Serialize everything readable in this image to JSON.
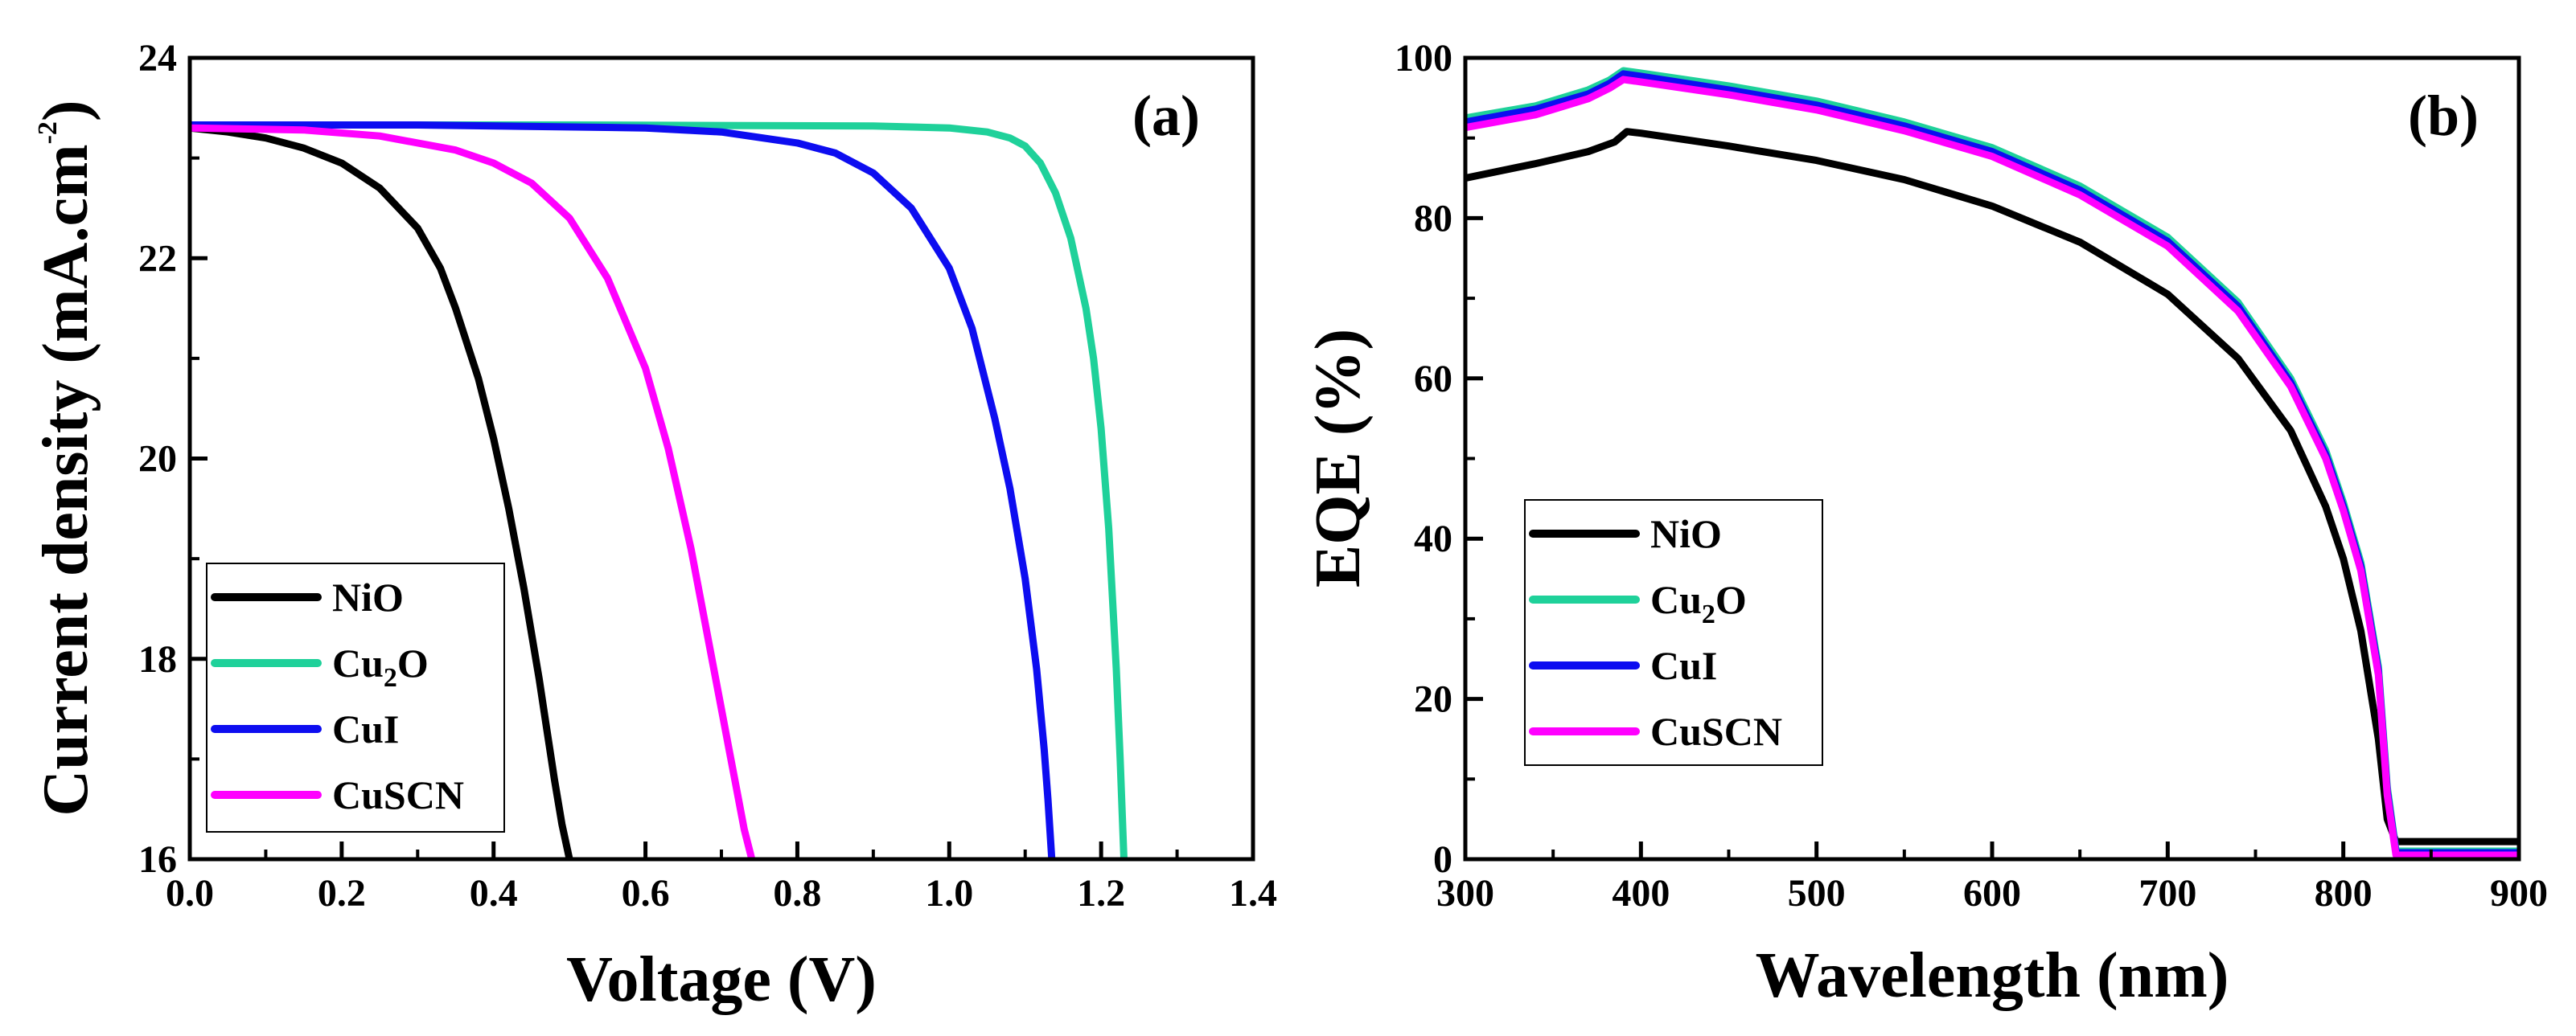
{
  "chart_data": [
    {
      "type": "line",
      "panel_label": "(a)",
      "xlabel": "Voltage (V)",
      "ylabel": "Current density (mA.cm-2)",
      "ylabel_parts": {
        "main": "Current density (mA.cm",
        "sup": "-2",
        "close": ")"
      },
      "xlim": [
        0.0,
        1.4
      ],
      "ylim": [
        16,
        24
      ],
      "xticks": [
        0.0,
        0.2,
        0.4,
        0.6,
        0.8,
        1.0,
        1.2,
        1.4
      ],
      "xtick_labels": [
        "0.0",
        "0.2",
        "0.4",
        "0.6",
        "0.8",
        "1.0",
        "1.2",
        "1.4"
      ],
      "yticks": [
        16,
        18,
        20,
        22,
        24
      ],
      "ytick_labels": [
        "16",
        "18",
        "20",
        "22",
        "24"
      ],
      "legend_position": "bottom-left",
      "series": [
        {
          "name": "NiO",
          "color": "#000000",
          "x": [
            0.0,
            0.05,
            0.1,
            0.15,
            0.2,
            0.25,
            0.3,
            0.33,
            0.35,
            0.38,
            0.4,
            0.42,
            0.44,
            0.46,
            0.47,
            0.48,
            0.49,
            0.5
          ],
          "y": [
            23.3,
            23.26,
            23.2,
            23.1,
            22.95,
            22.7,
            22.3,
            21.9,
            21.5,
            20.8,
            20.2,
            19.5,
            18.7,
            17.8,
            17.3,
            16.8,
            16.35,
            16.0
          ]
        },
        {
          "name": "Cu2O",
          "label_main": "Cu",
          "label_sub": "2",
          "label_end": "O",
          "color": "#1fd19a",
          "x": [
            0.0,
            0.5,
            0.9,
            1.0,
            1.05,
            1.08,
            1.1,
            1.12,
            1.14,
            1.16,
            1.18,
            1.19,
            1.2,
            1.21,
            1.22,
            1.225,
            1.23
          ],
          "y": [
            23.33,
            23.33,
            23.32,
            23.3,
            23.26,
            23.2,
            23.12,
            22.95,
            22.65,
            22.2,
            21.5,
            21.0,
            20.3,
            19.3,
            17.9,
            17.0,
            16.0
          ]
        },
        {
          "name": "CuI",
          "color": "#0d0df0",
          "x": [
            0.0,
            0.3,
            0.6,
            0.7,
            0.8,
            0.85,
            0.9,
            0.95,
            1.0,
            1.03,
            1.06,
            1.08,
            1.1,
            1.115,
            1.125,
            1.13,
            1.135
          ],
          "y": [
            23.33,
            23.33,
            23.3,
            23.26,
            23.15,
            23.05,
            22.85,
            22.5,
            21.9,
            21.3,
            20.4,
            19.7,
            18.8,
            17.9,
            17.1,
            16.6,
            16.0
          ]
        },
        {
          "name": "CuSCN",
          "color": "#ff00ff",
          "x": [
            0.0,
            0.15,
            0.25,
            0.35,
            0.4,
            0.45,
            0.5,
            0.55,
            0.6,
            0.63,
            0.66,
            0.68,
            0.7,
            0.71,
            0.72,
            0.73,
            0.74
          ],
          "y": [
            23.3,
            23.28,
            23.22,
            23.08,
            22.95,
            22.75,
            22.4,
            21.8,
            20.9,
            20.1,
            19.1,
            18.3,
            17.5,
            17.1,
            16.7,
            16.3,
            16.0
          ]
        }
      ]
    },
    {
      "type": "line",
      "panel_label": "(b)",
      "xlabel": "Wavelength (nm)",
      "ylabel": "EQE (%)",
      "xlim": [
        300,
        900
      ],
      "ylim": [
        0,
        100
      ],
      "xticks": [
        300,
        400,
        500,
        600,
        700,
        800,
        900
      ],
      "xtick_labels": [
        "300",
        "400",
        "500",
        "600",
        "700",
        "800",
        "900"
      ],
      "yticks": [
        0,
        20,
        40,
        60,
        80,
        100
      ],
      "ytick_labels": [
        "0",
        "20",
        "40",
        "60",
        "80",
        "100"
      ],
      "legend_position": "bottom-left",
      "series": [
        {
          "name": "NiO",
          "color": "#000000",
          "x": [
            300,
            340,
            370,
            385,
            392,
            400,
            450,
            500,
            550,
            600,
            650,
            700,
            740,
            770,
            790,
            800,
            810,
            820,
            825,
            830,
            900
          ],
          "y": [
            85.0,
            86.8,
            88.3,
            89.5,
            90.8,
            90.6,
            89.0,
            87.2,
            84.8,
            81.5,
            77.0,
            70.5,
            62.5,
            53.5,
            44.0,
            37.5,
            28.5,
            15.0,
            5.0,
            2.2,
            2.2
          ]
        },
        {
          "name": "Cu2O",
          "label_main": "Cu",
          "label_sub": "2",
          "label_end": "O",
          "color": "#1fd19a",
          "x": [
            300,
            340,
            370,
            382,
            390,
            400,
            450,
            500,
            550,
            600,
            650,
            700,
            740,
            770,
            790,
            800,
            810,
            820,
            825,
            830,
            900
          ],
          "y": [
            92.5,
            94.0,
            96.0,
            97.2,
            98.4,
            98.1,
            96.5,
            94.6,
            92.0,
            88.8,
            84.0,
            77.6,
            69.5,
            60.0,
            51.0,
            44.5,
            37.0,
            24.0,
            9.0,
            1.0,
            1.0
          ]
        },
        {
          "name": "CuI",
          "color": "#0d0df0",
          "x": [
            300,
            340,
            370,
            382,
            390,
            400,
            450,
            500,
            550,
            600,
            650,
            700,
            740,
            770,
            790,
            800,
            810,
            820,
            825,
            830,
            900
          ],
          "y": [
            92.0,
            93.6,
            95.5,
            96.8,
            98.0,
            97.7,
            96.0,
            94.1,
            91.5,
            88.3,
            83.5,
            77.1,
            69.0,
            59.5,
            50.5,
            44.0,
            36.5,
            23.5,
            8.5,
            0.8,
            0.8
          ]
        },
        {
          "name": "CuSCN",
          "color": "#ff00ff",
          "x": [
            300,
            340,
            370,
            382,
            390,
            400,
            450,
            500,
            550,
            600,
            650,
            700,
            740,
            770,
            790,
            800,
            810,
            820,
            825,
            830,
            900
          ],
          "y": [
            91.3,
            92.9,
            94.9,
            96.2,
            97.3,
            97.0,
            95.4,
            93.5,
            90.9,
            87.7,
            82.9,
            76.5,
            68.4,
            59.0,
            50.0,
            43.5,
            36.0,
            23.0,
            8.0,
            0.5,
            0.5
          ]
        }
      ]
    }
  ]
}
